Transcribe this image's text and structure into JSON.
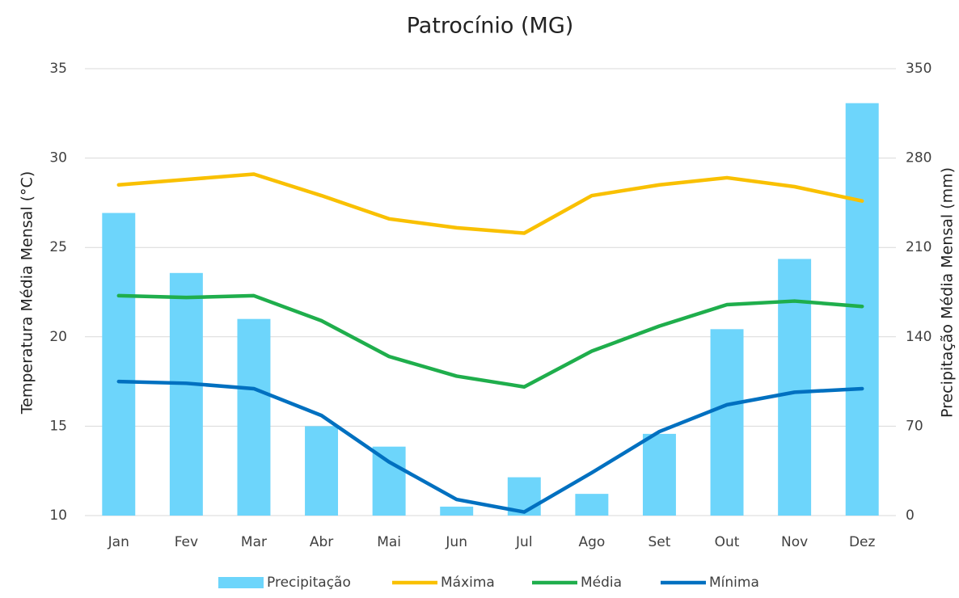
{
  "chart_data": {
    "type": "bar_line",
    "title": "Patrocínio (MG)",
    "y_label": "Temperatura Média Mensal (°C)",
    "y2_label": "Precipitação Média Mensal (mm)",
    "categories": [
      "Jan",
      "Fev",
      "Mar",
      "Abr",
      "Mai",
      "Jun",
      "Jul",
      "Ago",
      "Set",
      "Out",
      "Nov",
      "Dez"
    ],
    "ylim": [
      10,
      35
    ],
    "yticks": [
      10,
      15,
      20,
      25,
      30,
      35
    ],
    "y2lim": [
      0,
      350
    ],
    "y2ticks": [
      0,
      70,
      140,
      210,
      280,
      350
    ],
    "grid": true,
    "legend": "bottom",
    "series": [
      {
        "name": "Precipitação",
        "type": "bar",
        "axis": "y2",
        "color": "#6dd5fb",
        "values": [
          237,
          190,
          154,
          70,
          54,
          7,
          30,
          17,
          64,
          146,
          201,
          323
        ]
      },
      {
        "name": "Máxima",
        "type": "line",
        "color": "#f9c000",
        "values": [
          28.5,
          28.8,
          29.1,
          27.9,
          26.6,
          26.1,
          25.8,
          27.9,
          28.5,
          28.9,
          28.4,
          27.6
        ]
      },
      {
        "name": "Média",
        "type": "line",
        "color": "#1fae4c",
        "values": [
          22.3,
          22.2,
          22.3,
          20.9,
          18.9,
          17.8,
          17.2,
          19.2,
          20.6,
          21.8,
          22.0,
          21.7
        ]
      },
      {
        "name": "Mínima",
        "type": "line",
        "color": "#0070c0",
        "values": [
          17.5,
          17.4,
          17.1,
          15.6,
          13.0,
          10.9,
          10.2,
          12.4,
          14.7,
          16.2,
          16.9,
          17.1
        ]
      }
    ]
  }
}
